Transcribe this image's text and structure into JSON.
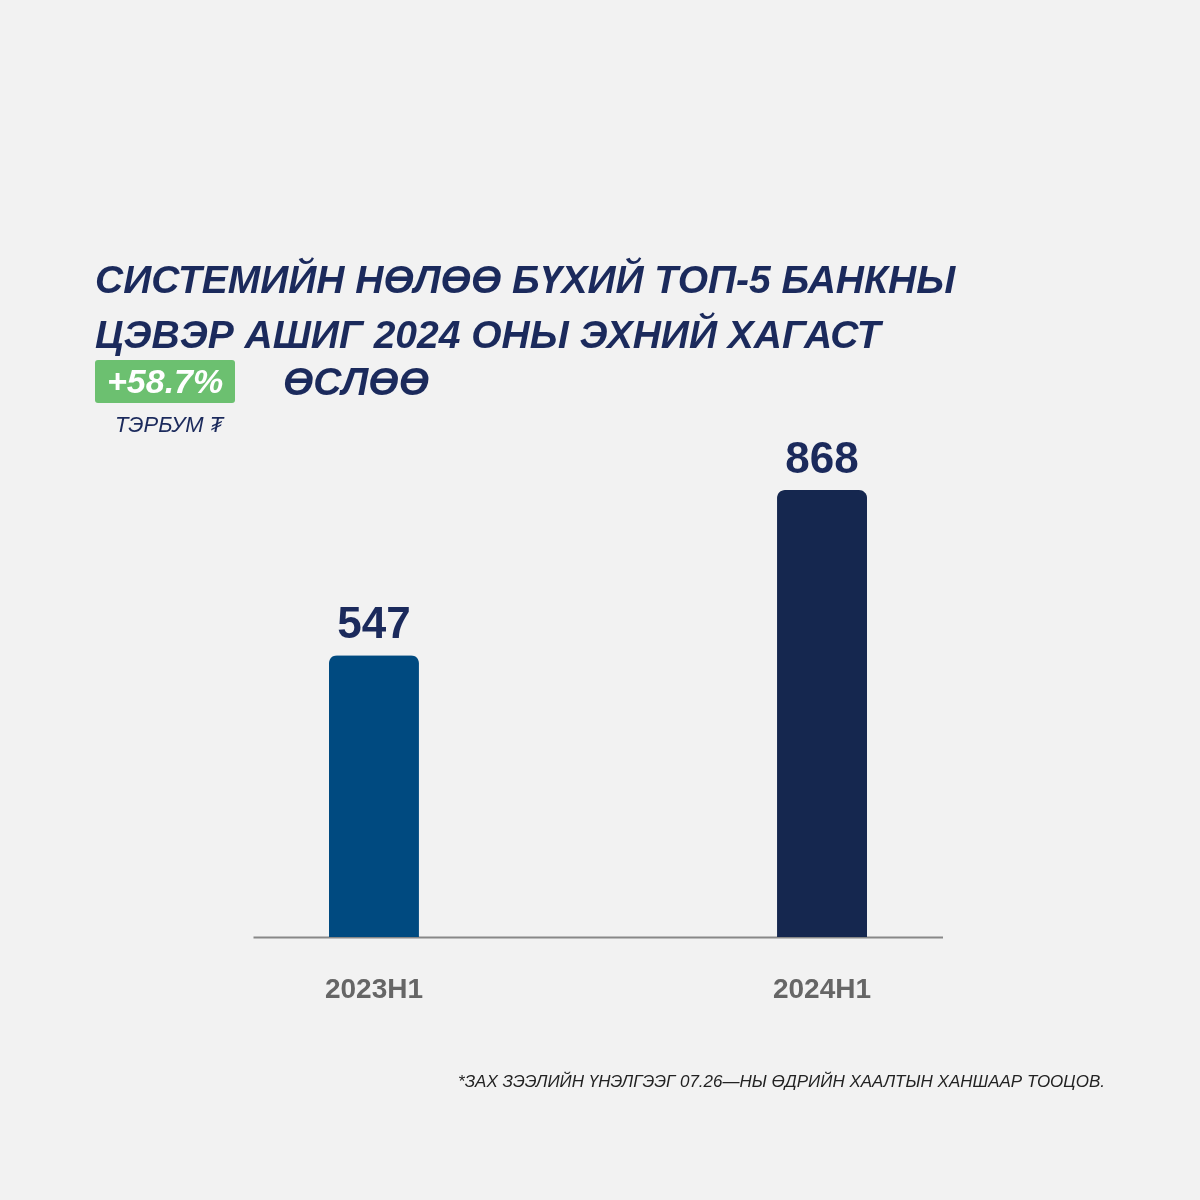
{
  "chart_data": {
    "type": "bar",
    "title": "СИСТЕМИЙН НӨЛӨӨ БҮХИЙ ТОП-5 БАНКНЫ ЦЭВЭР АШИГ 2024 ОНЫ ЭХНИЙ ХАГАСТ",
    "subtitle": "ӨСЛӨӨ",
    "ylabel": "ТЭРБУМ ₮",
    "annotations": [
      "+58.7%",
      "*ЗАХ ЗЭЭЛИЙН ҮНЭЛГЭЭГ 07.26—НЫ ӨДРИЙН ХААЛТЫН ХАНШААР ТООЦОВ."
    ],
    "categories": [
      "2023H1",
      "2024H1"
    ],
    "values": [
      547,
      868
    ],
    "colors": [
      "#004a80",
      "#15274f"
    ],
    "data_labels": true
  }
}
